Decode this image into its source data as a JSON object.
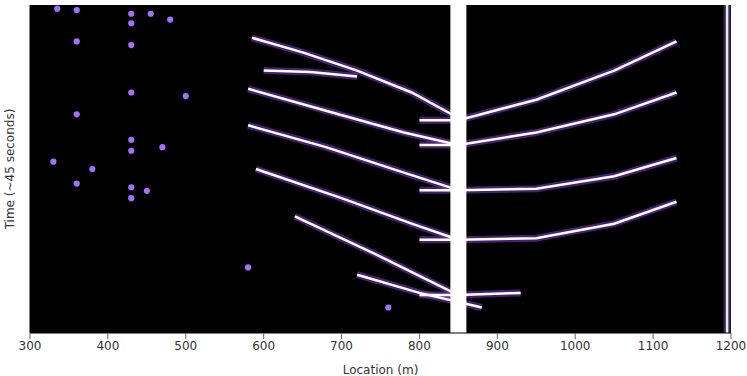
{
  "chart_data": {
    "type": "line",
    "x_label": "Location (m)",
    "y_label": "Time (~45 seconds)",
    "xlim": [
      300,
      1200
    ],
    "xticks": [
      300,
      400,
      500,
      600,
      700,
      800,
      900,
      1000,
      1100,
      1200
    ],
    "ylim": [
      0,
      45
    ],
    "tick_labels": "x",
    "grid": false,
    "series": [
      {
        "type": "line",
        "color": "#ffffff",
        "line_style": "solid",
        "x": [
          585,
          650,
          720,
          790,
          850
        ],
        "values": [
          40.5,
          38.5,
          36,
          33,
          29.5
        ]
      },
      {
        "type": "line",
        "color": "#ffffff",
        "line_style": "solid",
        "x": [
          600,
          660,
          720
        ],
        "values": [
          36,
          35.8,
          35.2
        ]
      },
      {
        "type": "line",
        "color": "#ffffff",
        "line_style": "solid",
        "x": [
          580,
          680,
          780,
          850
        ],
        "values": [
          33.5,
          30.5,
          27.5,
          25.8
        ]
      },
      {
        "type": "line",
        "color": "#ffffff",
        "line_style": "solid",
        "x": [
          580,
          680,
          780,
          850
        ],
        "values": [
          28.5,
          25.5,
          22,
          19.6
        ]
      },
      {
        "type": "line",
        "color": "#ffffff",
        "line_style": "solid",
        "x": [
          590,
          700,
          790,
          850
        ],
        "values": [
          22.5,
          18.5,
          15,
          12.8
        ]
      },
      {
        "type": "line",
        "color": "#ffffff",
        "line_style": "solid",
        "x": [
          640,
          740,
          850
        ],
        "values": [
          16,
          11,
          5.2
        ]
      },
      {
        "type": "line",
        "color": "#ffffff",
        "line_style": "solid",
        "x": [
          720,
          800,
          880
        ],
        "values": [
          8,
          5.5,
          3.5
        ]
      },
      {
        "type": "line",
        "color": "#ffffff",
        "line_style": "solid",
        "x": [
          800,
          850,
          950,
          1050,
          1130
        ],
        "values": [
          29.2,
          29.2,
          32,
          36,
          40
        ]
      },
      {
        "type": "line",
        "color": "#ffffff",
        "line_style": "solid",
        "x": [
          800,
          850,
          950,
          1050,
          1130
        ],
        "values": [
          25.8,
          25.8,
          27.5,
          30,
          33
        ]
      },
      {
        "type": "line",
        "color": "#ffffff",
        "line_style": "solid",
        "x": [
          800,
          850,
          950,
          1050,
          1130
        ],
        "values": [
          19.6,
          19.6,
          19.8,
          21.5,
          24
        ]
      },
      {
        "type": "line",
        "color": "#ffffff",
        "line_style": "solid",
        "x": [
          800,
          850,
          950,
          1050,
          1130
        ],
        "values": [
          12.8,
          12.8,
          13,
          15,
          18
        ]
      },
      {
        "type": "line",
        "color": "#ffffff",
        "line_style": "solid",
        "x": [
          800,
          850,
          930
        ],
        "values": [
          5.2,
          5.2,
          5.5
        ]
      },
      {
        "type": "line",
        "color": "#ffffff",
        "line_style": "thick",
        "x": [
          850,
          850
        ],
        "values": [
          0,
          45
        ]
      },
      {
        "type": "line",
        "color": "#d9f5d0",
        "line_style": "solid",
        "x": [
          1195,
          1195
        ],
        "values": [
          0,
          45
        ]
      },
      {
        "type": "scatter",
        "color": "#a070ff",
        "marker": "circle",
        "x": [
          335,
          360,
          430,
          430,
          455,
          480,
          360,
          430,
          430,
          500,
          360,
          430,
          430,
          470,
          330,
          380,
          430,
          450,
          360,
          430,
          580,
          760
        ],
        "values": [
          44.5,
          44.3,
          43.8,
          42.5,
          43.8,
          43,
          40,
          39.5,
          33,
          32.5,
          30,
          26.5,
          25,
          25.5,
          23.5,
          22.5,
          20,
          19.5,
          20.5,
          18.5,
          9,
          3.5
        ]
      }
    ]
  }
}
